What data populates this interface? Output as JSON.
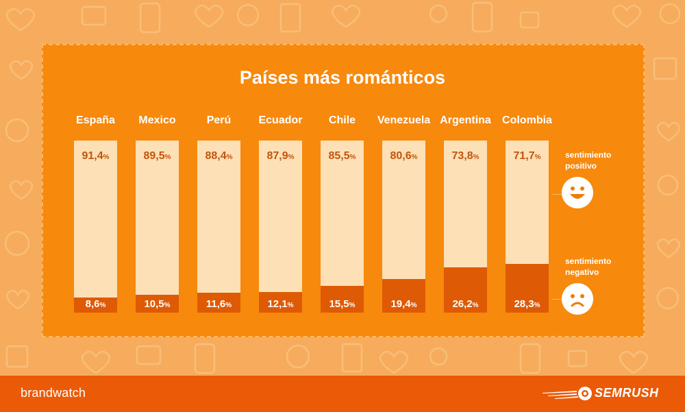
{
  "title": "Países más románticos",
  "legend": {
    "positive_line1": "sentimiento",
    "positive_line2": "positivo",
    "negative_line1": "sentimiento",
    "negative_line2": "negativo"
  },
  "footer": {
    "brandwatch": "brandwatch",
    "semrush": "SEMRUSH"
  },
  "colors": {
    "positive": "#fde0b6",
    "negative": "#de5a05",
    "panel": "#f7890d",
    "background": "#f6ac5c",
    "footer": "#ea5a07"
  },
  "icons": [
    "happy-face-icon",
    "sad-face-icon",
    "semrush-logo-icon"
  ],
  "chart_data": {
    "type": "bar",
    "stacked": true,
    "title": "Países más románticos",
    "categories": [
      "España",
      "Mexico",
      "Perú",
      "Ecuador",
      "Chile",
      "Venezuela",
      "Argentina",
      "Colombia"
    ],
    "series": [
      {
        "name": "sentimiento positivo",
        "values": [
          91.4,
          89.5,
          88.4,
          87.9,
          85.5,
          80.6,
          73.8,
          71.7
        ],
        "labels": [
          "91,4",
          "89,5",
          "88,4",
          "87,9",
          "85,5",
          "80,6",
          "73,8",
          "71,7"
        ]
      },
      {
        "name": "sentimiento negativo",
        "values": [
          8.6,
          10.5,
          11.6,
          12.1,
          15.5,
          19.4,
          26.2,
          28.3
        ],
        "labels": [
          "8,6",
          "10,5",
          "11,6",
          "12,1",
          "15,5",
          "19,4",
          "26,2",
          "28,3"
        ]
      }
    ],
    "unit": "%",
    "ylim": [
      0,
      100
    ]
  }
}
